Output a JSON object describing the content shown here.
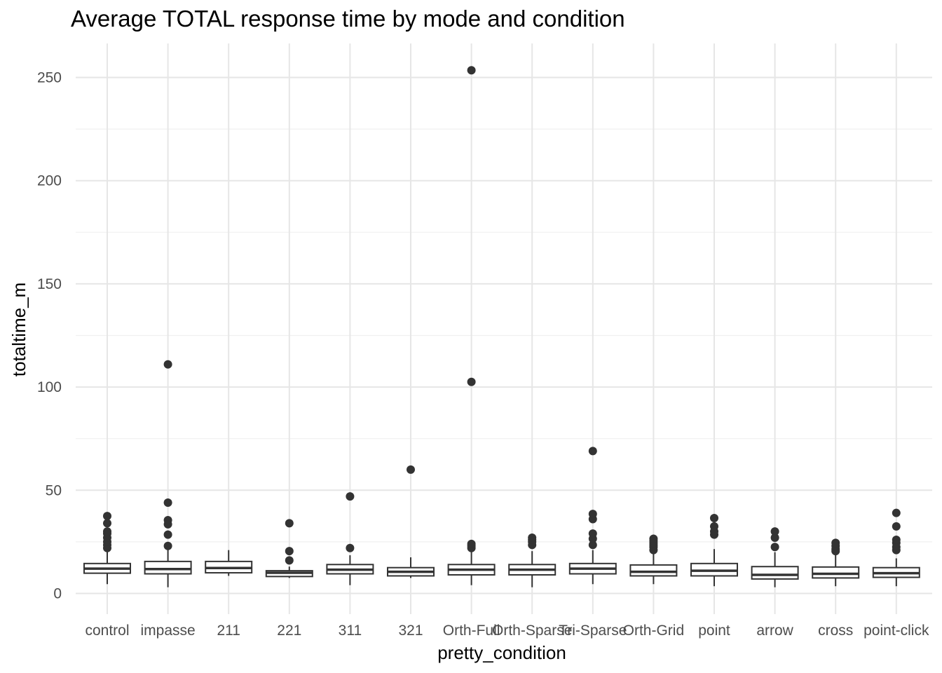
{
  "chart_data": {
    "type": "box",
    "title": "Average TOTAL response time by mode and condition",
    "xlabel": "pretty_condition",
    "ylabel": "totaltime_m",
    "ylim": [
      -10,
      265
    ],
    "yticks": [
      0,
      50,
      100,
      150,
      200,
      250
    ],
    "grid": true,
    "categories": [
      "control",
      "impasse",
      "211",
      "221",
      "311",
      "321",
      "Orth-Full",
      "Orth-Sparse",
      "Tri-Sparse",
      "Orth-Grid",
      "point",
      "arrow",
      "cross",
      "point-click"
    ],
    "boxes": [
      {
        "category": "control",
        "min": 4.5,
        "q1": 9.8,
        "median": 12.0,
        "q3": 14.5,
        "max": 21.5,
        "outliers": [
          22.0,
          23.5,
          25.0,
          27.0,
          29.0,
          30.0,
          34.0,
          37.5
        ]
      },
      {
        "category": "impasse",
        "min": 3.0,
        "q1": 9.5,
        "median": 11.8,
        "q3": 15.5,
        "max": 22.0,
        "outliers": [
          23.0,
          28.5,
          33.5,
          35.5,
          44.0,
          111.0
        ]
      },
      {
        "category": "211",
        "min": 8.5,
        "q1": 10.0,
        "median": 12.3,
        "q3": 15.5,
        "max": 21.0,
        "outliers": []
      },
      {
        "category": "221",
        "min": 7.5,
        "q1": 8.2,
        "median": 10.0,
        "q3": 11.0,
        "max": 13.0,
        "outliers": [
          16.0,
          20.5,
          34.0
        ]
      },
      {
        "category": "311",
        "min": 4.0,
        "q1": 9.5,
        "median": 11.5,
        "q3": 14.0,
        "max": 18.5,
        "outliers": [
          22.0,
          47.0
        ]
      },
      {
        "category": "321",
        "min": 7.5,
        "q1": 8.5,
        "median": 10.5,
        "q3": 12.5,
        "max": 17.5,
        "outliers": [
          60.0
        ]
      },
      {
        "category": "Orth-Full",
        "min": 4.0,
        "q1": 9.0,
        "median": 11.5,
        "q3": 14.0,
        "max": 21.0,
        "outliers": [
          22.0,
          23.0,
          24.0,
          102.5,
          253.5
        ]
      },
      {
        "category": "Orth-Sparse",
        "min": 3.0,
        "q1": 9.0,
        "median": 11.5,
        "q3": 14.0,
        "max": 20.5,
        "outliers": [
          23.5,
          25.0,
          26.0,
          27.0
        ]
      },
      {
        "category": "Tri-Sparse",
        "min": 4.5,
        "q1": 9.5,
        "median": 12.0,
        "q3": 14.5,
        "max": 21.0,
        "outliers": [
          23.5,
          26.5,
          29.0,
          36.0,
          38.5,
          69.0
        ]
      },
      {
        "category": "Orth-Grid",
        "min": 4.5,
        "q1": 8.5,
        "median": 10.5,
        "q3": 13.8,
        "max": 19.5,
        "outliers": [
          21.0,
          22.5,
          23.5,
          24.5,
          25.5,
          26.5
        ]
      },
      {
        "category": "point",
        "min": 3.5,
        "q1": 8.5,
        "median": 11.0,
        "q3": 14.5,
        "max": 21.5,
        "outliers": [
          28.5,
          30.0,
          32.5,
          36.5
        ]
      },
      {
        "category": "arrow",
        "min": 3.0,
        "q1": 7.0,
        "median": 9.0,
        "q3": 13.0,
        "max": 20.0,
        "outliers": [
          22.5,
          27.0,
          30.0
        ]
      },
      {
        "category": "cross",
        "min": 3.5,
        "q1": 7.5,
        "median": 9.5,
        "q3": 12.8,
        "max": 19.5,
        "outliers": [
          20.5,
          21.5,
          23.0,
          24.5
        ]
      },
      {
        "category": "point-click",
        "min": 3.5,
        "q1": 7.8,
        "median": 9.8,
        "q3": 12.5,
        "max": 17.0,
        "outliers": [
          21.0,
          22.5,
          24.5,
          26.0,
          32.5,
          39.0
        ]
      }
    ]
  }
}
